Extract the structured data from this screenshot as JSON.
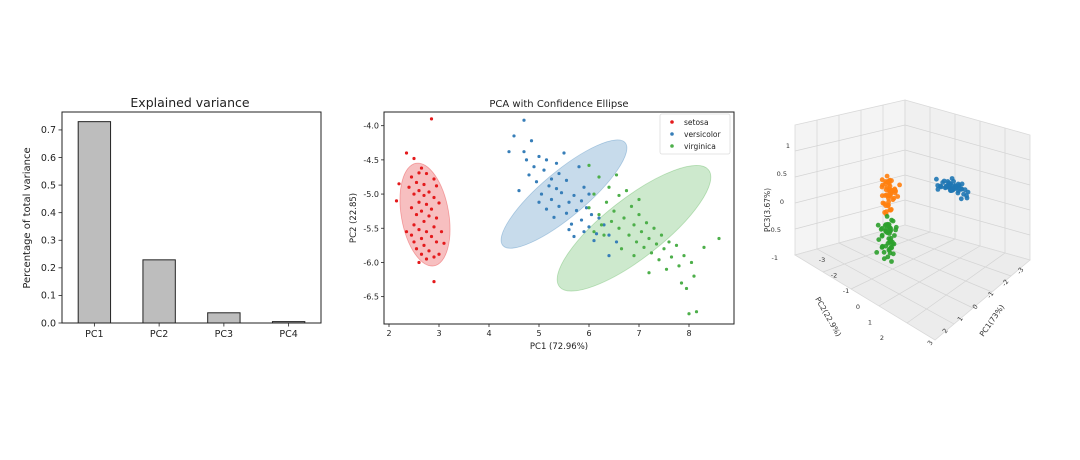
{
  "colors": {
    "setosa": "#e41a1c",
    "versicolor": "#377eb8",
    "virginica": "#4daf4a",
    "orange": "#ff7f0e",
    "blue3d": "#1f77b4",
    "green3d": "#2ca02c",
    "bar_fill": "#bdbdbd",
    "bar_edge": "#222222"
  },
  "chart_data": [
    {
      "type": "bar",
      "title": "Explained variance",
      "xlabel": "",
      "ylabel": "Percentage of total variance",
      "categories": [
        "PC1",
        "PC2",
        "PC3",
        "PC4"
      ],
      "values": [
        0.73,
        0.229,
        0.037,
        0.005
      ],
      "ylim": [
        0,
        0.765
      ],
      "yticks": [
        0.0,
        0.1,
        0.2,
        0.3,
        0.4,
        0.5,
        0.6,
        0.7
      ],
      "ytick_labels": [
        "0.0",
        "0.1",
        "0.2",
        "0.3",
        "0.4",
        "0.5",
        "0.6",
        "0.7"
      ]
    },
    {
      "type": "scatter",
      "title": "PCA with Confidence Ellipse",
      "xlabel": "PC1 (72.96%)",
      "ylabel": "PC2 (22.85)",
      "xlim": [
        1.9,
        8.9
      ],
      "ylim": [
        -6.9,
        -3.8
      ],
      "xticks": [
        2,
        3,
        4,
        5,
        6,
        7,
        8
      ],
      "xtick_labels": [
        "2",
        "3",
        "4",
        "5",
        "6",
        "7",
        "8"
      ],
      "yticks": [
        -4.0,
        -4.5,
        -5.0,
        -5.5,
        -6.0,
        -6.5
      ],
      "ytick_labels": [
        "-4.0",
        "-4.5",
        "-5.0",
        "-5.5",
        "-6.0",
        "-6.5"
      ],
      "legend_position": "top-right",
      "series": [
        {
          "name": "setosa",
          "color": "#e41a1c",
          "ellipse": {
            "cx": 2.72,
            "cy": -5.3,
            "rx": 0.4,
            "ry": 0.88,
            "angle_deg": -10
          },
          "points": [
            [
              2.85,
              -3.9
            ],
            [
              2.35,
              -4.4
            ],
            [
              2.5,
              -4.48
            ],
            [
              2.65,
              -4.62
            ],
            [
              2.6,
              -4.69
            ],
            [
              2.75,
              -4.7
            ],
            [
              2.45,
              -4.75
            ],
            [
              2.9,
              -4.78
            ],
            [
              2.55,
              -4.83
            ],
            [
              2.7,
              -4.86
            ],
            [
              2.4,
              -4.9
            ],
            [
              2.95,
              -4.88
            ],
            [
              2.6,
              -4.95
            ],
            [
              2.8,
              -4.97
            ],
            [
              2.5,
              -5.0
            ],
            [
              2.7,
              -5.02
            ],
            [
              2.9,
              -5.05
            ],
            [
              2.15,
              -5.1
            ],
            [
              2.6,
              -5.12
            ],
            [
              2.75,
              -5.15
            ],
            [
              3.0,
              -5.13
            ],
            [
              2.45,
              -5.2
            ],
            [
              2.85,
              -5.22
            ],
            [
              2.65,
              -5.25
            ],
            [
              2.55,
              -5.3
            ],
            [
              2.8,
              -5.32
            ],
            [
              2.95,
              -5.35
            ],
            [
              2.7,
              -5.4
            ],
            [
              2.5,
              -5.45
            ],
            [
              2.9,
              -5.48
            ],
            [
              2.6,
              -5.52
            ],
            [
              2.75,
              -5.55
            ],
            [
              3.05,
              -5.55
            ],
            [
              2.85,
              -5.62
            ],
            [
              2.65,
              -5.65
            ],
            [
              2.5,
              -5.7
            ],
            [
              2.95,
              -5.7
            ],
            [
              2.7,
              -5.75
            ],
            [
              3.1,
              -5.72
            ],
            [
              2.55,
              -5.8
            ],
            [
              2.8,
              -5.83
            ],
            [
              2.65,
              -5.88
            ],
            [
              2.9,
              -5.92
            ],
            [
              2.6,
              -6.0
            ],
            [
              2.75,
              -5.95
            ],
            [
              2.45,
              -5.6
            ],
            [
              2.2,
              -4.85
            ],
            [
              2.35,
              -5.55
            ],
            [
              2.9,
              -6.28
            ],
            [
              3.0,
              -5.88
            ]
          ]
        },
        {
          "name": "versicolor",
          "color": "#377eb8",
          "ellipse": {
            "cx": 5.5,
            "cy": -5.0,
            "rx": 1.35,
            "ry": 0.38,
            "angle_deg": -40
          },
          "points": [
            [
              4.7,
              -3.92
            ],
            [
              4.5,
              -4.15
            ],
            [
              4.85,
              -4.22
            ],
            [
              4.4,
              -4.38
            ],
            [
              4.7,
              -4.38
            ],
            [
              5.0,
              -4.45
            ],
            [
              5.15,
              -4.5
            ],
            [
              4.9,
              -4.6
            ],
            [
              5.35,
              -4.55
            ],
            [
              5.1,
              -4.65
            ],
            [
              4.8,
              -4.72
            ],
            [
              5.4,
              -4.7
            ],
            [
              5.25,
              -4.78
            ],
            [
              4.95,
              -4.82
            ],
            [
              5.55,
              -4.8
            ],
            [
              5.2,
              -4.88
            ],
            [
              5.35,
              -4.92
            ],
            [
              4.6,
              -4.95
            ],
            [
              5.05,
              -5.0
            ],
            [
              5.45,
              -4.98
            ],
            [
              5.7,
              -5.02
            ],
            [
              5.25,
              -5.08
            ],
            [
              5.6,
              -5.12
            ],
            [
              5.0,
              -5.12
            ],
            [
              5.85,
              -5.1
            ],
            [
              5.4,
              -5.18
            ],
            [
              5.15,
              -5.22
            ],
            [
              5.75,
              -5.24
            ],
            [
              5.95,
              -5.2
            ],
            [
              5.55,
              -5.28
            ],
            [
              6.05,
              -5.3
            ],
            [
              5.3,
              -5.34
            ],
            [
              5.85,
              -5.38
            ],
            [
              6.2,
              -5.35
            ],
            [
              5.65,
              -5.44
            ],
            [
              6.0,
              -5.48
            ],
            [
              6.3,
              -5.45
            ],
            [
              5.9,
              -5.55
            ],
            [
              6.15,
              -5.58
            ],
            [
              5.7,
              -5.62
            ],
            [
              6.4,
              -5.6
            ],
            [
              6.1,
              -5.68
            ],
            [
              6.55,
              -5.7
            ],
            [
              5.5,
              -4.4
            ],
            [
              5.8,
              -4.6
            ],
            [
              6.0,
              -5.0
            ],
            [
              4.75,
              -4.5
            ],
            [
              5.9,
              -4.9
            ],
            [
              6.4,
              -5.9
            ],
            [
              5.6,
              -5.52
            ]
          ]
        },
        {
          "name": "virginica",
          "color": "#4daf4a",
          "ellipse": {
            "cx": 6.9,
            "cy": -5.5,
            "rx": 1.6,
            "ry": 0.5,
            "angle_deg": -38
          },
          "points": [
            [
              6.0,
              -4.58
            ],
            [
              6.2,
              -4.75
            ],
            [
              6.4,
              -4.9
            ],
            [
              6.1,
              -5.0
            ],
            [
              6.6,
              -5.02
            ],
            [
              6.35,
              -5.12
            ],
            [
              6.0,
              -5.2
            ],
            [
              6.85,
              -5.18
            ],
            [
              6.5,
              -5.25
            ],
            [
              6.2,
              -5.3
            ],
            [
              7.0,
              -5.3
            ],
            [
              6.7,
              -5.35
            ],
            [
              6.45,
              -5.4
            ],
            [
              7.15,
              -5.42
            ],
            [
              6.9,
              -5.45
            ],
            [
              6.6,
              -5.5
            ],
            [
              7.3,
              -5.5
            ],
            [
              7.05,
              -5.55
            ],
            [
              6.8,
              -5.6
            ],
            [
              7.45,
              -5.6
            ],
            [
              7.2,
              -5.65
            ],
            [
              6.95,
              -5.7
            ],
            [
              7.6,
              -5.7
            ],
            [
              7.35,
              -5.73
            ],
            [
              7.1,
              -5.78
            ],
            [
              7.75,
              -5.75
            ],
            [
              7.5,
              -5.8
            ],
            [
              7.25,
              -5.86
            ],
            [
              7.9,
              -5.9
            ],
            [
              7.65,
              -5.92
            ],
            [
              7.4,
              -5.96
            ],
            [
              8.05,
              -6.0
            ],
            [
              7.8,
              -6.05
            ],
            [
              7.55,
              -6.1
            ],
            [
              8.1,
              -6.2
            ],
            [
              7.85,
              -6.3
            ],
            [
              7.95,
              -6.38
            ],
            [
              8.6,
              -5.65
            ],
            [
              8.3,
              -5.78
            ],
            [
              6.3,
              -5.6
            ],
            [
              6.55,
              -4.72
            ],
            [
              6.75,
              -4.95
            ],
            [
              7.0,
              -5.08
            ],
            [
              6.25,
              -5.45
            ],
            [
              6.9,
              -5.9
            ],
            [
              7.2,
              -6.15
            ],
            [
              6.1,
              -5.55
            ],
            [
              8.0,
              -6.75
            ],
            [
              8.15,
              -6.72
            ],
            [
              6.65,
              -5.8
            ]
          ]
        }
      ]
    },
    {
      "type": "scatter",
      "projection": "3d",
      "title": "",
      "xlabel": "PC1(73%)",
      "ylabel": "PC2(22.9%)",
      "zlabel": "PC3(3.67%)",
      "ztick_labels": [
        "1",
        "0.5",
        "0",
        "-0.5",
        "-1"
      ],
      "ytick_labels": [
        "-3",
        "-2",
        "-1",
        "0",
        "1",
        "2"
      ],
      "xtick_labels": [
        "-3",
        "-2",
        "-1",
        "0",
        "1",
        "2",
        "3"
      ],
      "series": [
        {
          "name": "blue",
          "color": "#1f77b4",
          "count": 50
        },
        {
          "name": "orange",
          "color": "#ff7f0e",
          "count": 50
        },
        {
          "name": "green",
          "color": "#2ca02c",
          "count": 50
        }
      ]
    }
  ]
}
